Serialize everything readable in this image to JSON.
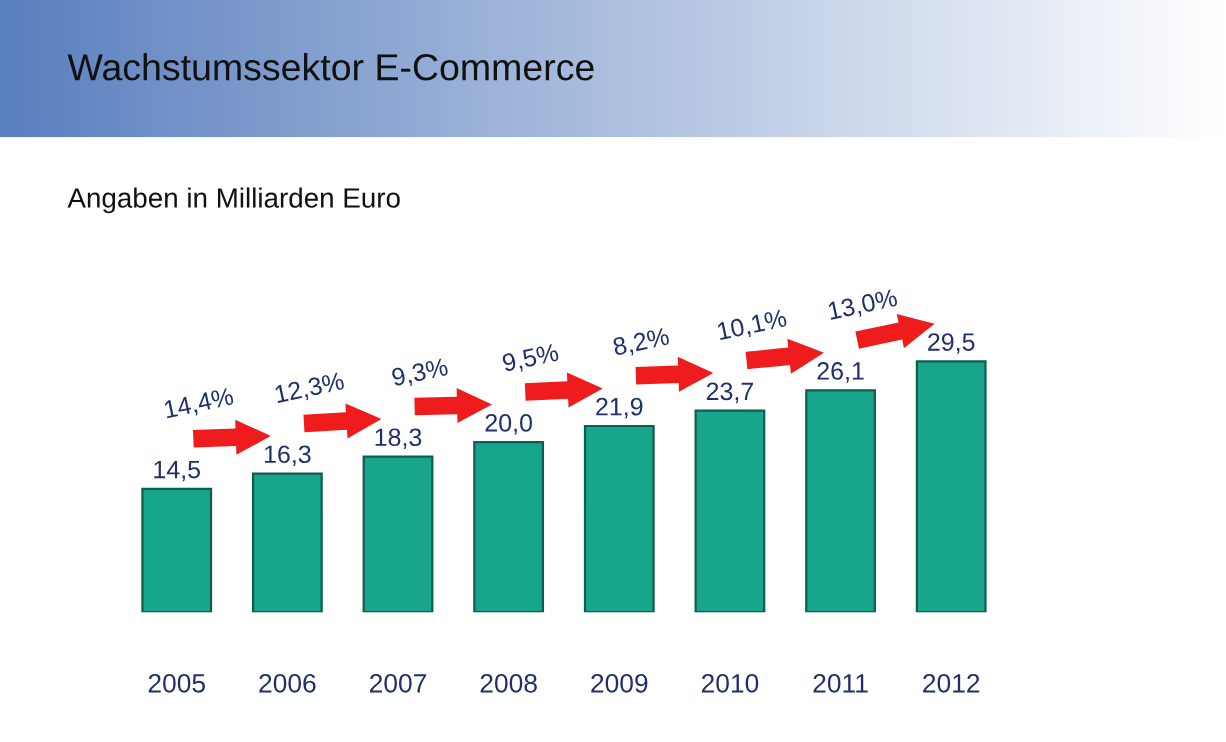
{
  "chart_data": {
    "type": "bar",
    "title": "Wachstumssektor E-Commerce",
    "subtitle": "Angaben in Milliarden Euro",
    "categories": [
      "2005",
      "2006",
      "2007",
      "2008",
      "2009",
      "2010",
      "2011",
      "2012"
    ],
    "values": [
      14.5,
      16.3,
      18.3,
      20.0,
      21.9,
      23.7,
      26.1,
      29.5
    ],
    "value_labels": [
      "14,5",
      "16,3",
      "18,3",
      "20,0",
      "21,9",
      "23,7",
      "26,1",
      "29,5"
    ],
    "color": "#17a58c",
    "annotations": [
      "14,4%",
      "12,3%",
      "9,3%",
      "9,5%",
      "8,2%",
      "10,1%",
      "13,0%"
    ],
    "grid": false,
    "legend": false
  }
}
